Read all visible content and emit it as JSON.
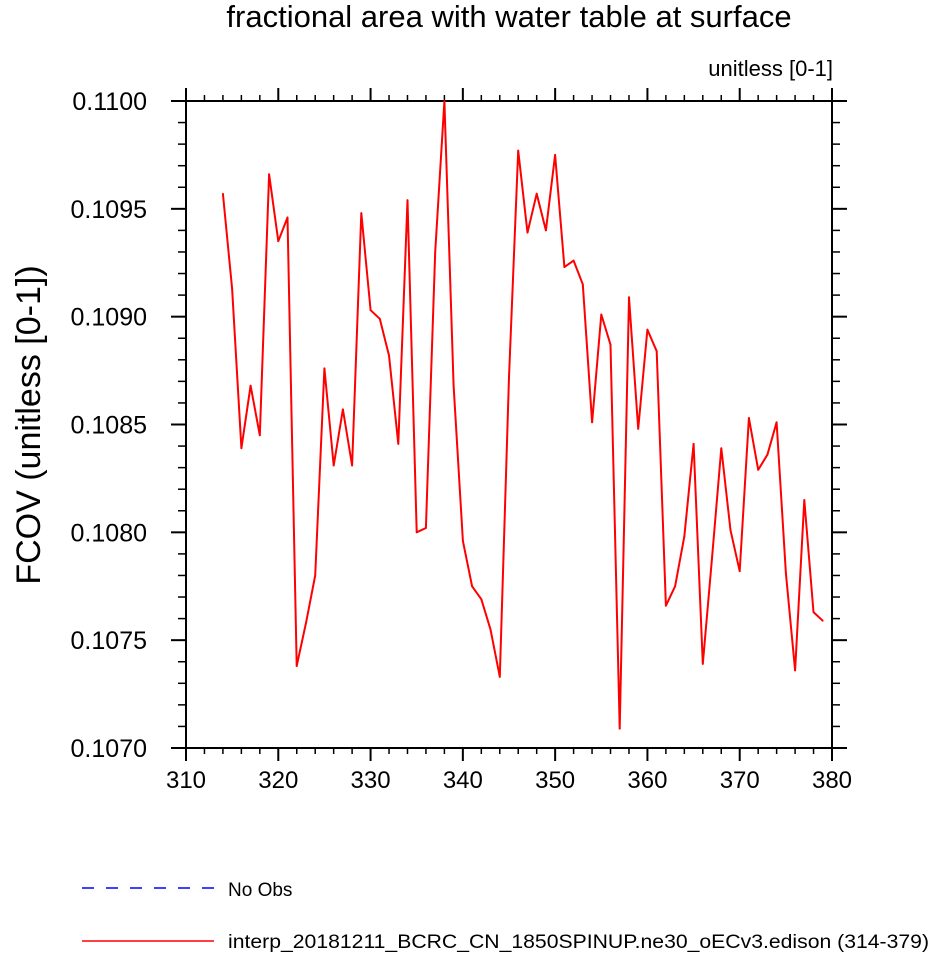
{
  "chart_data": {
    "type": "line",
    "title": "fractional area with water table at surface",
    "units_label": "unitless [0-1]",
    "xlabel": "",
    "ylabel": "FCOV  (unitless [0-1])",
    "xlim": [
      310,
      380
    ],
    "ylim": [
      0.107,
      0.11
    ],
    "xticks": [
      310,
      320,
      330,
      340,
      350,
      360,
      370,
      380
    ],
    "yticks": [
      0.107,
      0.1075,
      0.108,
      0.1085,
      0.109,
      0.1095,
      0.11
    ],
    "x_tick_labels": [
      "310",
      "320",
      "330",
      "340",
      "350",
      "360",
      "370",
      "380"
    ],
    "y_tick_labels": [
      "0.1070",
      "0.1075",
      "0.1080",
      "0.1085",
      "0.1090",
      "0.1095",
      "0.1100"
    ],
    "grid": false,
    "legend": [
      {
        "label": "No Obs",
        "color": "#0000ff",
        "style": "dashed"
      },
      {
        "label": "interp_20181211_BCRC_CN_1850SPINUP.ne30_oECv3.edison (314-379)",
        "color": "#ff0000",
        "style": "solid"
      }
    ],
    "series": [
      {
        "name": "interp_20181211_BCRC_CN_1850SPINUP.ne30_oECv3.edison (314-379)",
        "color": "#ff0000",
        "x": [
          314,
          315,
          316,
          317,
          318,
          319,
          320,
          321,
          322,
          323,
          324,
          325,
          326,
          327,
          328,
          329,
          330,
          331,
          332,
          333,
          334,
          335,
          336,
          337,
          338,
          339,
          340,
          341,
          342,
          343,
          344,
          345,
          346,
          347,
          348,
          349,
          350,
          351,
          352,
          353,
          354,
          355,
          356,
          357,
          358,
          359,
          360,
          361,
          362,
          363,
          364,
          365,
          366,
          367,
          368,
          369,
          370,
          371,
          372,
          373,
          374,
          375,
          376,
          377,
          378,
          379
        ],
        "values": [
          0.10957,
          0.10913,
          0.10839,
          0.10868,
          0.10845,
          0.10966,
          0.10935,
          0.10946,
          0.10738,
          0.10758,
          0.1078,
          0.10876,
          0.10831,
          0.10857,
          0.10831,
          0.10948,
          0.10903,
          0.10899,
          0.10882,
          0.10841,
          0.10954,
          0.108,
          0.10802,
          0.1093,
          0.11,
          0.10868,
          0.10796,
          0.10775,
          0.10769,
          0.10755,
          0.10733,
          0.10872,
          0.10977,
          0.10939,
          0.10957,
          0.1094,
          0.10975,
          0.10923,
          0.10926,
          0.10915,
          0.10851,
          0.10901,
          0.10887,
          0.10709,
          0.10909,
          0.10848,
          0.10894,
          0.10884,
          0.10766,
          0.10775,
          0.10798,
          0.10841,
          0.10739,
          0.10788,
          0.10839,
          0.10801,
          0.10782,
          0.10853,
          0.10829,
          0.10836,
          0.10851,
          0.10781,
          0.10736,
          0.10815,
          0.10763,
          0.10759
        ]
      }
    ]
  }
}
